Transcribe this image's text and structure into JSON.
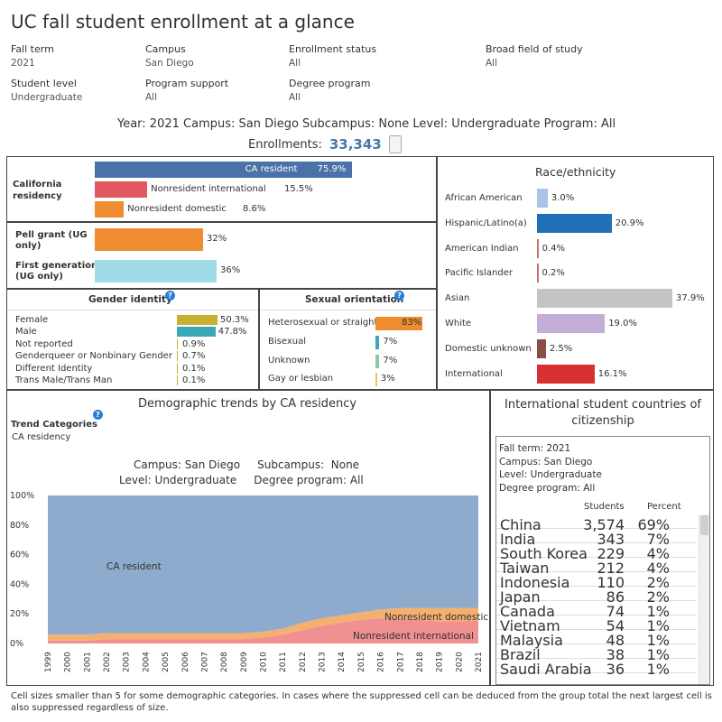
{
  "title": "UC fall student enrollment at a glance",
  "filters": [
    {
      "label": "Fall term",
      "value": "2021"
    },
    {
      "label": "Campus",
      "value": "San Diego"
    },
    {
      "label": "Enrollment status",
      "value": "All"
    },
    {
      "label": "Broad field of study",
      "value": "All"
    },
    {
      "label": "Student level",
      "value": "Undergraduate"
    },
    {
      "label": "Program support",
      "value": "All"
    },
    {
      "label": "Degree program",
      "value": "All"
    }
  ],
  "summary": "Year: 2021  Campus: San Diego  Subcampus: None  Level: Undergraduate  Program: All",
  "enrollments": {
    "label": "Enrollments:",
    "value": "33,343"
  },
  "residency": {
    "label": "California residency",
    "bars": [
      {
        "name": "CA resident",
        "pct": "75.9%",
        "value": 75.9,
        "color": "#4a72a8"
      },
      {
        "name": "Nonresident international",
        "pct": "15.5%",
        "value": 15.5,
        "color": "#e05860"
      },
      {
        "name": "Nonresident domestic",
        "pct": "8.6%",
        "value": 8.6,
        "color": "#f08c30"
      }
    ]
  },
  "pell": {
    "label": "Pell grant (UG only)",
    "pct": "32%",
    "value": 32,
    "color": "#f08c30"
  },
  "firstgen": {
    "label": "First generation (UG only)",
    "pct": "36%",
    "value": 36,
    "color": "#a0dce8"
  },
  "gender": {
    "title": "Gender identity",
    "rows": [
      {
        "name": "Female",
        "pct": "50.3%",
        "value": 50.3,
        "color": "#c8b030"
      },
      {
        "name": "Male",
        "pct": "47.8%",
        "value": 47.8,
        "color": "#3ba8b8"
      },
      {
        "name": "Not reported",
        "pct": "0.9%",
        "value": 0.9,
        "color": "#c8b030"
      },
      {
        "name": "Genderqueer or Nonbinary Gender",
        "pct": "0.7%",
        "value": 0.7,
        "color": "#c8b030"
      },
      {
        "name": "Different Identity",
        "pct": "0.1%",
        "value": 0.1,
        "color": "#c8b030"
      },
      {
        "name": "Trans Male/Trans Man",
        "pct": "0.1%",
        "value": 0.1,
        "color": "#c8b030"
      }
    ]
  },
  "orientation": {
    "title": "Sexual orientation",
    "rows": [
      {
        "name": "Heterosexual or straight",
        "pct": "83%",
        "value": 83,
        "color": "#f08c30"
      },
      {
        "name": "Bisexual",
        "pct": "7%",
        "value": 7,
        "color": "#3ba8b8"
      },
      {
        "name": "Unknown",
        "pct": "7%",
        "value": 7,
        "color": "#8fc8a8"
      },
      {
        "name": "Gay or lesbian",
        "pct": "3%",
        "value": 3,
        "color": "#e8c848"
      }
    ]
  },
  "race": {
    "title": "Race/ethnicity",
    "rows": [
      {
        "name": "African American",
        "pct": "3.0%",
        "value": 3.0,
        "color": "#a8c4e8"
      },
      {
        "name": "Hispanic/Latino(a)",
        "pct": "20.9%",
        "value": 20.9,
        "color": "#2070b8"
      },
      {
        "name": "American Indian",
        "pct": "0.4%",
        "value": 0.4,
        "color": "#c87070"
      },
      {
        "name": "Pacific Islander",
        "pct": "0.2%",
        "value": 0.2,
        "color": "#c87070"
      },
      {
        "name": "Asian",
        "pct": "37.9%",
        "value": 37.9,
        "color": "#c4c4c4"
      },
      {
        "name": "White",
        "pct": "19.0%",
        "value": 19.0,
        "color": "#c4aed8"
      },
      {
        "name": "Domestic unknown",
        "pct": "2.5%",
        "value": 2.5,
        "color": "#8a5048"
      },
      {
        "name": "International",
        "pct": "16.1%",
        "value": 16.1,
        "color": "#d83030"
      }
    ]
  },
  "trends": {
    "title": "Demographic trends by CA residency",
    "trend_label": "Trend Categories",
    "trend_value": "CA residency",
    "line1": "Campus: San Diego     Subcampus:  None",
    "line2": "Level: Undergraduate     Degree program: All",
    "area_labels": {
      "ca": "CA resident",
      "dom": "Nonresident domestic",
      "intl": "Nonresident international"
    }
  },
  "chart_data": {
    "type": "area",
    "x": [
      1999,
      2000,
      2001,
      2002,
      2003,
      2004,
      2005,
      2006,
      2007,
      2008,
      2009,
      2010,
      2011,
      2012,
      2013,
      2014,
      2015,
      2016,
      2017,
      2018,
      2019,
      2020,
      2021
    ],
    "yticks": [
      "100%",
      "80%",
      "60%",
      "40%",
      "20%",
      "0%"
    ],
    "ylim": [
      0,
      100
    ],
    "series": [
      {
        "name": "Nonresident international",
        "color": "#f09090",
        "values": [
          2,
          2,
          2,
          3,
          3,
          3,
          3,
          3,
          3,
          3,
          3,
          4,
          6,
          9,
          12,
          14,
          16,
          17,
          17,
          16,
          15,
          15,
          15.5
        ]
      },
      {
        "name": "Nonresident domestic",
        "color": "#f5b070",
        "values": [
          4,
          4,
          4,
          4,
          4,
          4,
          4,
          4,
          4,
          4,
          4,
          4,
          4,
          5,
          5,
          5,
          5,
          6,
          7,
          8,
          9,
          9,
          8.6
        ]
      },
      {
        "name": "CA resident",
        "color": "#8eaacc",
        "values": [
          94,
          94,
          94,
          93,
          93,
          93,
          93,
          93,
          93,
          93,
          93,
          92,
          90,
          86,
          83,
          81,
          79,
          77,
          76,
          76,
          76,
          76,
          75.9
        ]
      }
    ]
  },
  "intl": {
    "title": "International student countries of citizenship",
    "info": [
      "Fall term: 2021",
      "Campus: San Diego",
      "Level: Undergraduate",
      "Degree program: All"
    ],
    "col_students": "Students",
    "col_percent": "Percent",
    "rows": [
      {
        "country": "China",
        "students": "3,574",
        "pct": "69%"
      },
      {
        "country": "India",
        "students": "343",
        "pct": "7%"
      },
      {
        "country": "South Korea",
        "students": "229",
        "pct": "4%"
      },
      {
        "country": "Taiwan",
        "students": "212",
        "pct": "4%"
      },
      {
        "country": "Indonesia",
        "students": "110",
        "pct": "2%"
      },
      {
        "country": "Japan",
        "students": "86",
        "pct": "2%"
      },
      {
        "country": "Canada",
        "students": "74",
        "pct": "1%"
      },
      {
        "country": "Vietnam",
        "students": "54",
        "pct": "1%"
      },
      {
        "country": "Malaysia",
        "students": "48",
        "pct": "1%"
      },
      {
        "country": "Brazil",
        "students": "38",
        "pct": "1%"
      },
      {
        "country": "Saudi Arabia",
        "students": "36",
        "pct": "1%"
      }
    ]
  },
  "footnote": "Cell sizes smaller than 5 for some demographic categories. In cases where the suppressed cell can be deduced from the group total the next largest cell is also suppressed regardless of size."
}
